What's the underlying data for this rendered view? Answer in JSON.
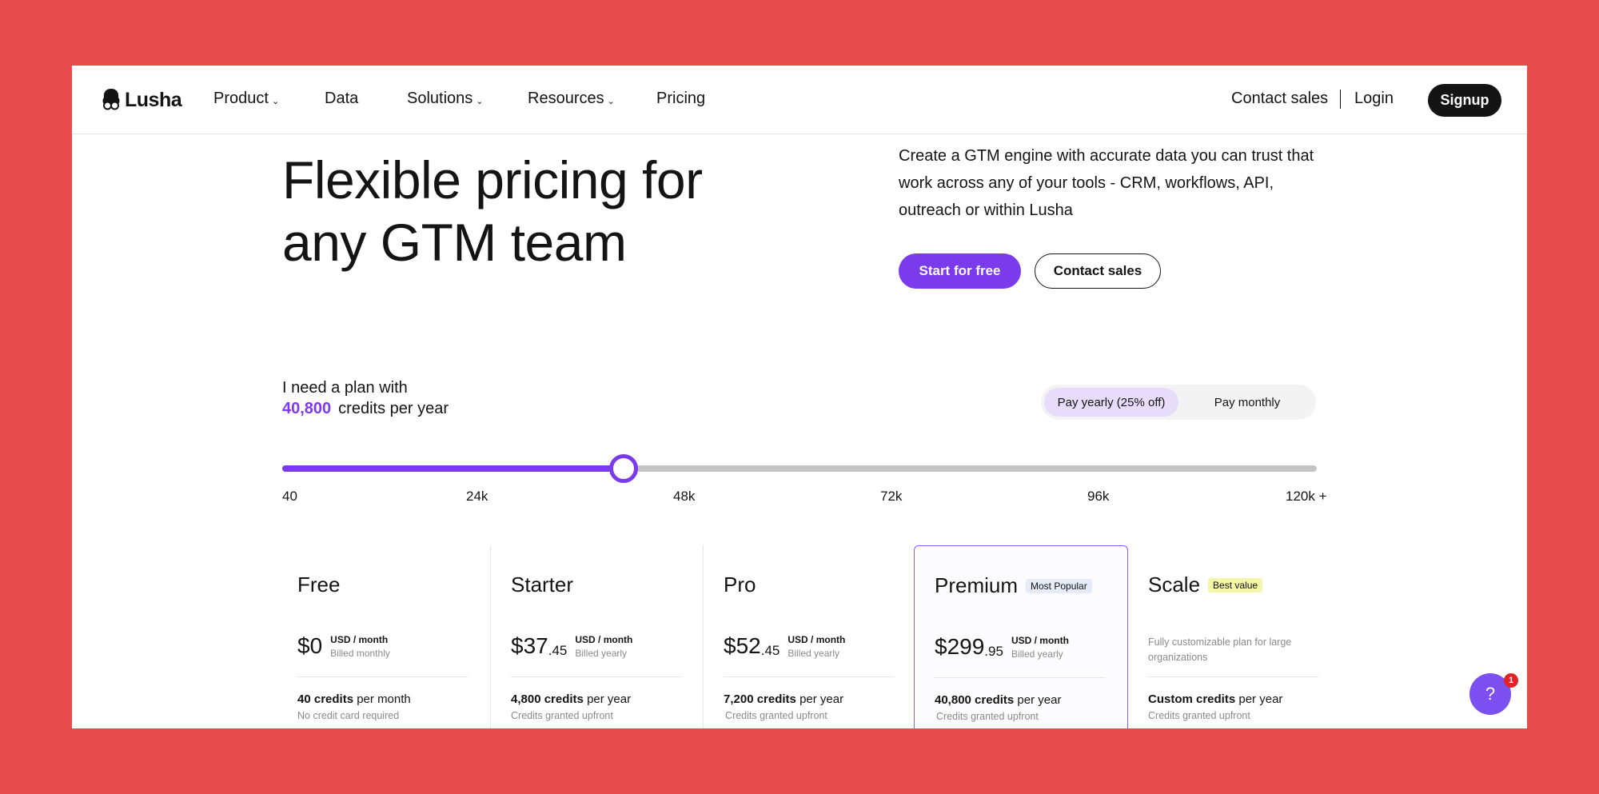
{
  "brand": {
    "name": "Lusha"
  },
  "nav": {
    "items": [
      {
        "label": "Product",
        "has_dropdown": true
      },
      {
        "label": "Data",
        "has_dropdown": false
      },
      {
        "label": "Solutions",
        "has_dropdown": true
      },
      {
        "label": "Resources",
        "has_dropdown": true
      },
      {
        "label": "Pricing",
        "has_dropdown": false
      }
    ],
    "contact_sales": "Contact sales",
    "login": "Login",
    "signup": "Signup"
  },
  "hero": {
    "title_line1": "Flexible pricing for",
    "title_line2": "any GTM team",
    "description": "Create a GTM engine with accurate data you can trust that work across any of your tools - CRM, workflows, API, outreach or within Lusha",
    "primary_cta": "Start for free",
    "secondary_cta": "Contact sales"
  },
  "plan_picker": {
    "prompt": "I need a plan with",
    "credits_value": "40,800",
    "credits_suffix": "credits per year",
    "billing_toggle": {
      "yearly": "Pay yearly (25% off)",
      "monthly": "Pay monthly",
      "selected": "yearly"
    },
    "slider": {
      "ticks": [
        "40",
        "24k",
        "48k",
        "72k",
        "96k",
        "120k +"
      ],
      "fill_fraction": 0.33
    }
  },
  "plans": [
    {
      "name": "Free",
      "badge": "",
      "price_main": "$0",
      "price_cents": "",
      "unit": "USD / month",
      "billing": "Billed monthly",
      "credits_amount": "40 credits",
      "credits_period": "per month",
      "note": "No credit card required"
    },
    {
      "name": "Starter",
      "badge": "",
      "price_main": "$37",
      "price_cents": ".45",
      "unit": "USD / month",
      "billing": "Billed yearly",
      "credits_amount": "4,800 credits",
      "credits_period": "per year",
      "note": "Credits granted upfront"
    },
    {
      "name": "Pro",
      "badge": "",
      "price_main": "$52",
      "price_cents": ".45",
      "unit": "USD / month",
      "billing": "Billed yearly",
      "credits_amount": "7,200 credits",
      "credits_period": "per year",
      "note": "Credits granted upfront"
    },
    {
      "name": "Premium",
      "badge": "Most Popular",
      "price_main": "$299",
      "price_cents": ".95",
      "unit": "USD / month",
      "billing": "Billed yearly",
      "credits_amount": "40,800 credits",
      "credits_period": "per year",
      "note": "Credits granted upfront"
    },
    {
      "name": "Scale",
      "badge": "Best value",
      "description": "Fully customizable plan for large organizations",
      "credits_amount": "Custom credits",
      "credits_period": "per year",
      "note": "Credits granted upfront"
    }
  ],
  "help": {
    "icon": "?",
    "badge_count": "1"
  },
  "colors": {
    "accent": "#7c3aed",
    "background": "#e84c4c",
    "dark": "#141414"
  }
}
